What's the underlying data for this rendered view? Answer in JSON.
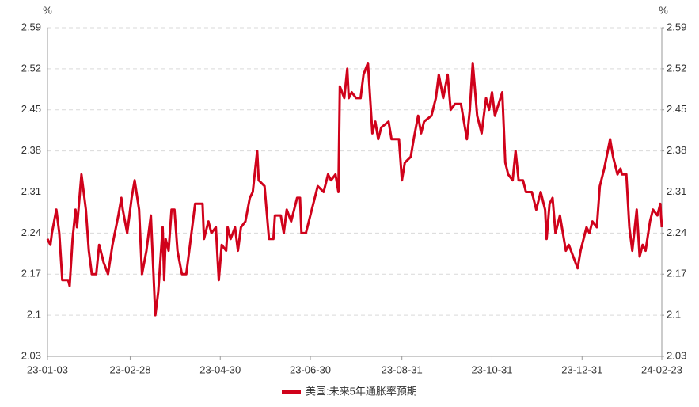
{
  "chart_data": {
    "type": "line",
    "y_label": "%",
    "y2_label": "%",
    "x": [
      "23-01-03",
      "23-01-05",
      "23-01-06",
      "23-01-09",
      "23-01-11",
      "23-01-13",
      "23-01-17",
      "23-01-18",
      "23-01-20",
      "23-01-22",
      "23-01-23",
      "23-01-26",
      "23-01-29",
      "23-01-31",
      "23-02-02",
      "23-02-05",
      "23-02-07",
      "23-02-10",
      "23-02-13",
      "23-02-16",
      "23-02-20",
      "23-02-22",
      "23-02-23",
      "23-02-26",
      "23-03-01",
      "23-03-03",
      "23-03-06",
      "23-03-08",
      "23-03-11",
      "23-03-14",
      "23-03-17",
      "23-03-19",
      "23-03-22",
      "23-03-23",
      "23-03-24",
      "23-03-26",
      "23-03-28",
      "23-03-30",
      "23-04-01",
      "23-04-04",
      "23-04-07",
      "23-04-09",
      "23-04-13",
      "23-04-18",
      "23-04-19",
      "23-04-22",
      "23-04-24",
      "23-04-27",
      "23-04-29",
      "23-05-01",
      "23-05-04",
      "23-05-05",
      "23-05-07",
      "23-05-10",
      "23-05-12",
      "23-05-14",
      "23-05-17",
      "23-05-20",
      "23-05-22",
      "23-05-25",
      "23-05-26",
      "23-05-30",
      "23-06-02",
      "23-06-05",
      "23-06-06",
      "23-06-10",
      "23-06-12",
      "23-06-14",
      "23-06-17",
      "23-06-21",
      "23-06-23",
      "23-06-24",
      "23-06-27",
      "23-06-30",
      "23-07-05",
      "23-07-09",
      "23-07-12",
      "23-07-14",
      "23-07-17",
      "23-07-19",
      "23-07-20",
      "23-07-23",
      "23-07-25",
      "23-07-26",
      "23-07-28",
      "23-07-31",
      "23-08-03",
      "23-08-05",
      "23-08-08",
      "23-08-11",
      "23-08-13",
      "23-08-15",
      "23-08-17",
      "23-08-22",
      "23-08-24",
      "23-08-27",
      "23-08-29",
      "23-08-31",
      "23-09-02",
      "23-09-06",
      "23-09-08",
      "23-09-11",
      "23-09-13",
      "23-09-15",
      "23-09-20",
      "23-09-23",
      "23-09-25",
      "23-09-28",
      "23-10-01",
      "23-10-03",
      "23-10-06",
      "23-10-10",
      "23-10-14",
      "23-10-16",
      "23-10-18",
      "23-10-21",
      "23-10-24",
      "23-10-27",
      "23-10-29",
      "23-10-31",
      "23-11-02",
      "23-11-07",
      "23-11-09",
      "23-11-11",
      "23-11-14",
      "23-11-16",
      "23-11-18",
      "23-11-21",
      "23-11-23",
      "23-11-27",
      "23-11-30",
      "23-12-03",
      "23-12-06",
      "23-12-07",
      "23-12-09",
      "23-12-11",
      "23-12-13",
      "23-12-16",
      "23-12-20",
      "23-12-22",
      "23-12-25",
      "23-12-28",
      "23-12-30",
      "24-01-03",
      "24-01-05",
      "24-01-07",
      "24-01-10",
      "24-01-12",
      "24-01-15",
      "24-01-19",
      "24-01-21",
      "24-01-24",
      "24-01-26",
      "24-01-27",
      "24-01-30",
      "24-02-01",
      "24-02-03",
      "24-02-06",
      "24-02-08",
      "24-02-10",
      "24-02-12",
      "24-02-15",
      "24-02-17",
      "24-02-20",
      "24-02-22",
      "24-02-23"
    ],
    "series": [
      {
        "name": "美国:未来5年通胀率预期",
        "color": "#d0021b",
        "values": [
          2.23,
          2.22,
          2.24,
          2.28,
          2.24,
          2.16,
          2.16,
          2.15,
          2.23,
          2.28,
          2.25,
          2.34,
          2.28,
          2.21,
          2.17,
          2.17,
          2.22,
          2.19,
          2.17,
          2.22,
          2.27,
          2.3,
          2.28,
          2.24,
          2.3,
          2.33,
          2.28,
          2.17,
          2.21,
          2.27,
          2.1,
          2.14,
          2.25,
          2.16,
          2.23,
          2.21,
          2.28,
          2.28,
          2.21,
          2.17,
          2.17,
          2.21,
          2.29,
          2.29,
          2.23,
          2.26,
          2.24,
          2.25,
          2.16,
          2.22,
          2.21,
          2.25,
          2.23,
          2.25,
          2.21,
          2.25,
          2.26,
          2.3,
          2.31,
          2.38,
          2.33,
          2.32,
          2.23,
          2.23,
          2.27,
          2.27,
          2.24,
          2.28,
          2.26,
          2.3,
          2.3,
          2.24,
          2.24,
          2.27,
          2.32,
          2.31,
          2.34,
          2.33,
          2.34,
          2.31,
          2.49,
          2.47,
          2.52,
          2.47,
          2.48,
          2.47,
          2.47,
          2.51,
          2.53,
          2.41,
          2.43,
          2.4,
          2.42,
          2.43,
          2.4,
          2.4,
          2.4,
          2.33,
          2.36,
          2.37,
          2.4,
          2.44,
          2.41,
          2.43,
          2.44,
          2.47,
          2.51,
          2.47,
          2.51,
          2.45,
          2.46,
          2.46,
          2.4,
          2.45,
          2.53,
          2.44,
          2.41,
          2.47,
          2.45,
          2.48,
          2.44,
          2.48,
          2.36,
          2.34,
          2.33,
          2.38,
          2.33,
          2.33,
          2.31,
          2.31,
          2.28,
          2.31,
          2.28,
          2.23,
          2.29,
          2.3,
          2.24,
          2.27,
          2.21,
          2.22,
          2.2,
          2.18,
          2.21,
          2.25,
          2.24,
          2.26,
          2.25,
          2.32,
          2.35,
          2.4,
          2.37,
          2.34,
          2.35,
          2.34,
          2.34,
          2.25,
          2.21,
          2.28,
          2.2,
          2.22,
          2.21,
          2.26,
          2.28,
          2.27,
          2.29,
          2.25
        ]
      }
    ],
    "xlim": [
      "23-01-03",
      "24-02-23"
    ],
    "xticks": [
      "23-01-03",
      "23-02-28",
      "23-04-30",
      "23-06-30",
      "23-08-31",
      "23-10-31",
      "23-12-31",
      "24-02-23"
    ],
    "ylim": [
      2.03,
      2.59
    ],
    "yticks": [
      2.03,
      2.1,
      2.17,
      2.24,
      2.31,
      2.38,
      2.45,
      2.52,
      2.59
    ],
    "y2lim": [
      2.03,
      2.59
    ],
    "y2ticks": [
      2.03,
      2.1,
      2.17,
      2.24,
      2.31,
      2.38,
      2.45,
      2.52,
      2.59
    ],
    "grid": true,
    "legend": "bottom"
  }
}
